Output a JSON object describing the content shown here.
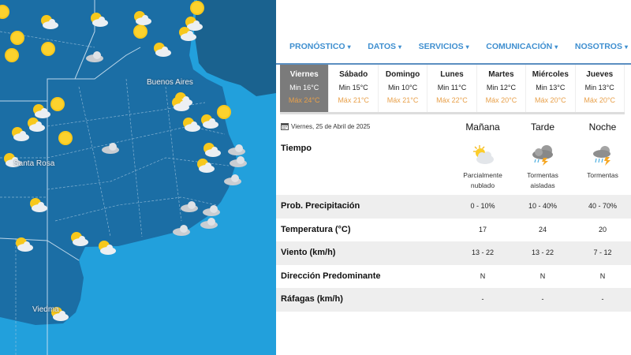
{
  "map": {
    "labels": [
      "Buenos Aires",
      "Santa Rosa",
      "Viedma"
    ],
    "colors": {
      "ocean": "#22a0dc",
      "land": "#1b6ea5",
      "neighbor": "#1a628f"
    }
  },
  "nav": [
    {
      "label": "PRONÓSTICO",
      "caret": "▾"
    },
    {
      "label": "DATOS",
      "caret": "▾"
    },
    {
      "label": "SERVICIOS",
      "caret": "▾"
    },
    {
      "label": "COMUNICACIÓN",
      "caret": "▾"
    },
    {
      "label": "NOSOTROS",
      "caret": "▾"
    }
  ],
  "days": [
    {
      "name": "Viernes",
      "min": "Min 16°C",
      "max": "Máx 24°C",
      "active": true
    },
    {
      "name": "Sábado",
      "min": "Min 15°C",
      "max": "Máx 21°C"
    },
    {
      "name": "Domingo",
      "min": "Min 10°C",
      "max": "Máx 21°C"
    },
    {
      "name": "Lunes",
      "min": "Min 11°C",
      "max": "Máx 22°C"
    },
    {
      "name": "Martes",
      "min": "Min 12°C",
      "max": "Máx 20°C"
    },
    {
      "name": "Miércoles",
      "min": "Min 13°C",
      "max": "Máx 20°C"
    },
    {
      "name": "Jueves",
      "min": "Min 13°C",
      "max": "Máx 20°C"
    }
  ],
  "forecast": {
    "date": "Viernes, 25 de Abril de 2025",
    "periods": [
      "Mañana",
      "Tarde",
      "Noche"
    ],
    "tiempo_label": "Tiempo",
    "weather": [
      {
        "icon": "partly-cloudy-icon",
        "desc1": "Parcialmente",
        "desc2": "nublado"
      },
      {
        "icon": "isolated-storms-icon",
        "desc1": "Tormentas",
        "desc2": "aisladas"
      },
      {
        "icon": "storms-icon",
        "desc1": "Tormentas",
        "desc2": ""
      }
    ],
    "rows": [
      {
        "label": "Prob. Precipitación",
        "values": [
          "0 - 10%",
          "10 - 40%",
          "40 - 70%"
        ]
      },
      {
        "label": "Temperatura (°C)",
        "values": [
          "17",
          "24",
          "20"
        ]
      },
      {
        "label": "Viento (km/h)",
        "values": [
          "13 - 22",
          "13 - 22",
          "7 - 12"
        ]
      },
      {
        "label": "Dirección Predominante",
        "values": [
          "N",
          "N",
          "N"
        ]
      },
      {
        "label": "Ráfagas (km/h)",
        "values": [
          "-",
          "-",
          "-"
        ]
      }
    ]
  },
  "colors": {
    "nav": "#3f8fd0",
    "max_temp": "#e8a04a",
    "active_day": "#7b7b7b"
  }
}
